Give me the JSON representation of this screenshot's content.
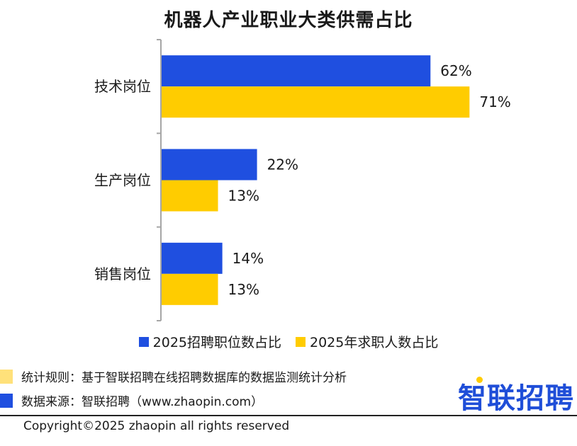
{
  "title": "机器人产业职业大类供需占比",
  "colors": {
    "series1": "#1f4fe0",
    "series2": "#ffcc00",
    "note1": "#ffe17a",
    "note2": "#1f4fe0"
  },
  "chart_data": {
    "type": "bar",
    "orientation": "horizontal",
    "categories": [
      "技术岗位",
      "生产岗位",
      "销售岗位"
    ],
    "series": [
      {
        "name": "2025招聘职位数占比",
        "values": [
          62,
          22,
          14
        ],
        "labels": [
          "62%",
          "22%",
          "14%"
        ]
      },
      {
        "name": "2025年求职人数占比",
        "values": [
          71,
          13,
          13
        ],
        "labels": [
          "71%",
          "13%",
          "13%"
        ]
      }
    ],
    "xlim": [
      0,
      85
    ],
    "legend_position": "bottom",
    "grid": false
  },
  "legend": [
    {
      "label": "2025招聘职位数占比"
    },
    {
      "label": "2025年求职人数占比"
    }
  ],
  "notes": {
    "rule": "统计规则：基于智联招聘在线招聘数据库的数据监测统计分析",
    "source": "数据来源：智联招聘（www.zhaopin.com）"
  },
  "logo_text": "智联招聘",
  "copyright": "Copyright©2025 zhaopin all rights reserved"
}
